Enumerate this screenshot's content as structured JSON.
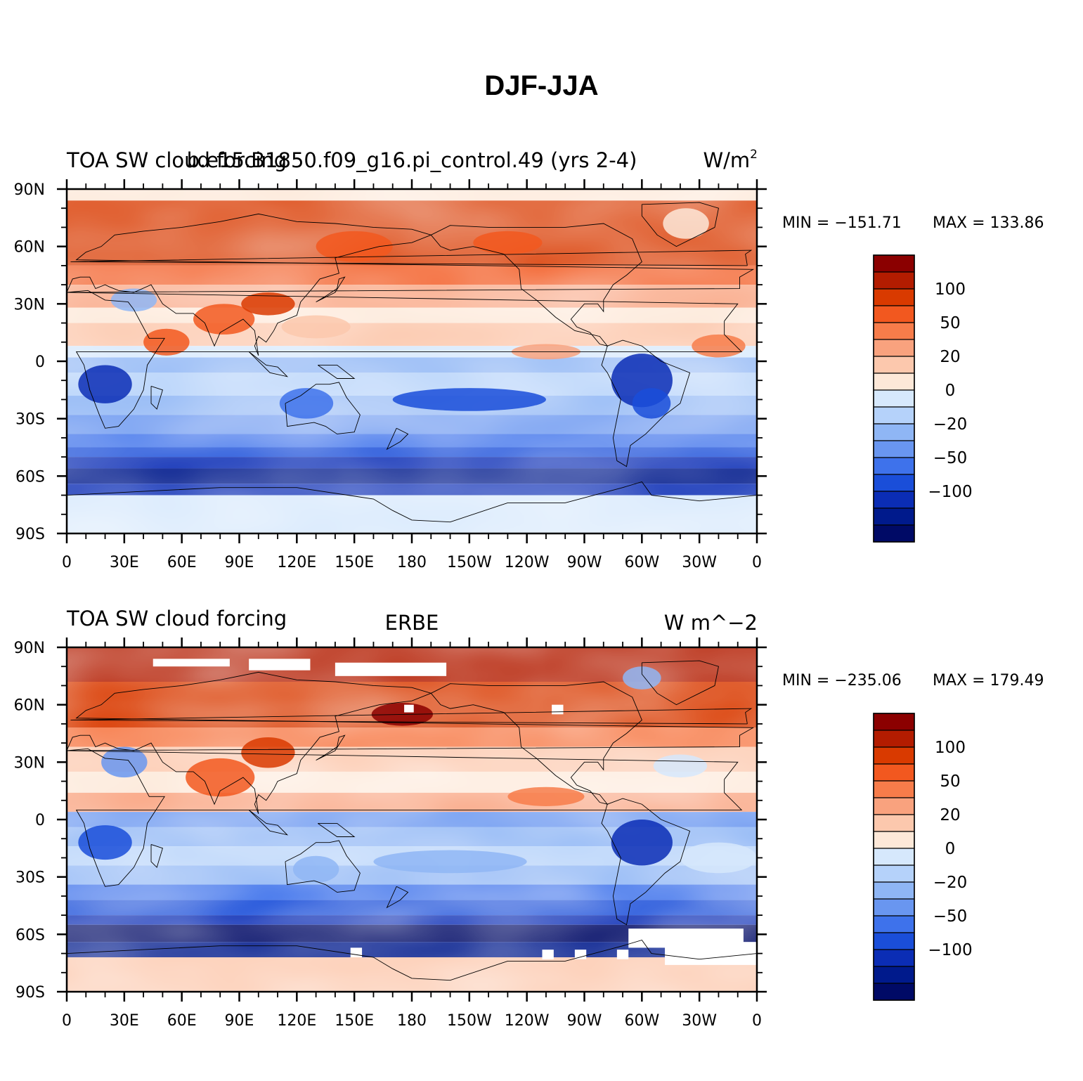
{
  "figure": {
    "title": "DJF-JJA"
  },
  "axes": {
    "lon_ticks": [
      "0",
      "30E",
      "60E",
      "90E",
      "120E",
      "150E",
      "180",
      "150W",
      "120W",
      "90W",
      "60W",
      "30W",
      "0"
    ],
    "lat_ticks": [
      "90N",
      "60N",
      "30N",
      "0",
      "30S",
      "60S",
      "90S"
    ]
  },
  "legend": {
    "labels": [
      "100",
      "50",
      "20",
      "0",
      "−20",
      "−50",
      "−100"
    ],
    "colors": [
      "#8b0000",
      "#b31c00",
      "#d93a00",
      "#f2581f",
      "#f77c4a",
      "#f9a27e",
      "#fcc8ad",
      "#fde8d8",
      "#d6e8fc",
      "#b5d2fa",
      "#8fb6f5",
      "#6996f0",
      "#3e72eb",
      "#1a4ed9",
      "#0b2db5",
      "#001a8c",
      "#000a66"
    ]
  },
  "panels": [
    {
      "left_title": "TOA SW cloud forcing",
      "center_title": "b.e15.B1850.f09_g16.pi_control.49 (yrs 2-4)",
      "units": "W/m",
      "units_sup": "2",
      "min_label": "MIN = −151.71",
      "max_label": "MAX = 133.86"
    },
    {
      "left_title": "TOA SW cloud forcing",
      "center_title": "ERBE",
      "units": "W m^−2",
      "units_sup": "",
      "min_label": "MIN = −235.06",
      "max_label": "MAX = 179.49"
    }
  ],
  "chart_data": [
    {
      "type": "heatmap",
      "title": "DJF-JJA",
      "subtitle": "TOA SW cloud forcing — b.e15.B1850.f09_g16.pi_control.49 (yrs 2-4)",
      "units": "W/m2",
      "x_range": [
        0,
        360
      ],
      "y_range": [
        -90,
        90
      ],
      "min": -151.71,
      "max": 133.86,
      "contour_levels": [
        -100,
        -50,
        -20,
        0,
        20,
        50,
        100
      ]
    },
    {
      "type": "heatmap",
      "title": "DJF-JJA",
      "subtitle": "TOA SW cloud forcing — ERBE",
      "units": "W m^-2",
      "x_range": [
        0,
        360
      ],
      "y_range": [
        -90,
        90
      ],
      "min": -235.06,
      "max": 179.49,
      "contour_levels": [
        -100,
        -50,
        -20,
        0,
        20,
        50,
        100
      ]
    }
  ]
}
